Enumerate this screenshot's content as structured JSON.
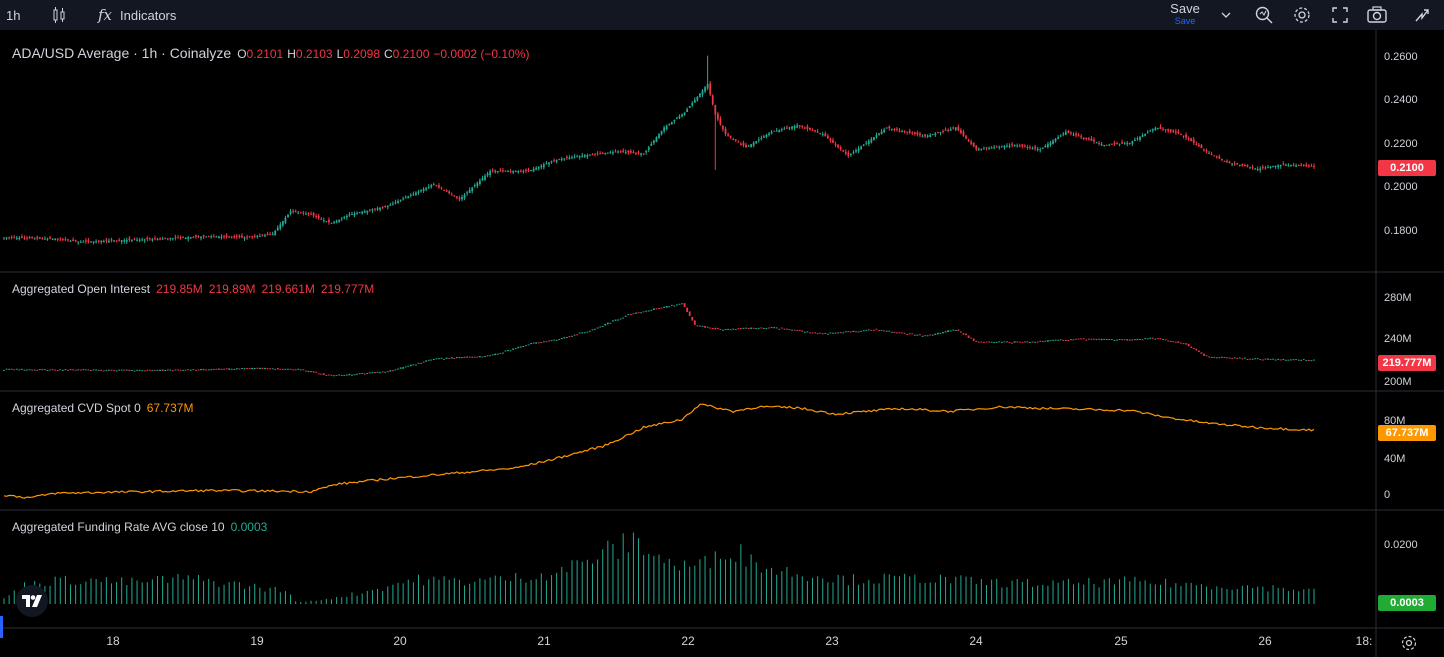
{
  "toolbar": {
    "interval": "1h",
    "indicators_label": "Indicators",
    "save_label": "Save",
    "save_sub": "Save",
    "fx": "fx"
  },
  "colors": {
    "up": "#22ab94",
    "down": "#f23645",
    "cvd": "#ff9800",
    "bg": "#000000",
    "grid": "#2a2e39"
  },
  "pane_price": {
    "symbol": "ADA/USD Average · 1h · Coinalyze",
    "o_label": "O",
    "o": "0.2101",
    "h_label": "H",
    "h": "0.2103",
    "l_label": "L",
    "l": "0.2098",
    "c_label": "C",
    "c": "0.2100",
    "change": "−0.0002 (−0.10%)",
    "axis": [
      "0.2600",
      "0.2400",
      "0.2200",
      "0.2000",
      "0.1800"
    ],
    "last": "0.2100"
  },
  "pane_oi": {
    "title": "Aggregated Open Interest",
    "values": [
      "219.85M",
      "219.89M",
      "219.661M",
      "219.777M"
    ],
    "axis": [
      "280M",
      "240M",
      "200M"
    ],
    "last": "219.777M"
  },
  "pane_cvd": {
    "title": "Aggregated CVD Spot 0",
    "value": "67.737M",
    "axis": [
      "80M",
      "40M",
      "0"
    ],
    "last": "67.737M"
  },
  "pane_funding": {
    "title": "Aggregated Funding Rate AVG close 10",
    "value": "0.0003",
    "axis": [
      "0.0200"
    ],
    "last": "0.0003"
  },
  "time_axis": {
    "dates": [
      "18",
      "19",
      "20",
      "21",
      "22",
      "23",
      "24",
      "25",
      "26",
      "18:"
    ]
  },
  "chart_data": {
    "type": "candlestick",
    "x_labels": [
      "18",
      "19",
      "20",
      "21",
      "22",
      "23",
      "24",
      "25",
      "26"
    ],
    "price_waypoints": [
      [
        0,
        0.1775
      ],
      [
        20,
        0.1768
      ],
      [
        30,
        0.1755
      ],
      [
        60,
        0.1768
      ],
      [
        80,
        0.178
      ],
      [
        95,
        0.1775
      ],
      [
        105,
        0.179
      ],
      [
        112,
        0.1895
      ],
      [
        120,
        0.188
      ],
      [
        128,
        0.184
      ],
      [
        135,
        0.188
      ],
      [
        150,
        0.192
      ],
      [
        168,
        0.202
      ],
      [
        178,
        0.195
      ],
      [
        190,
        0.208
      ],
      [
        205,
        0.208
      ],
      [
        215,
        0.213
      ],
      [
        225,
        0.215
      ],
      [
        240,
        0.217
      ],
      [
        250,
        0.216
      ],
      [
        258,
        0.228
      ],
      [
        266,
        0.235
      ],
      [
        275,
        0.248
      ],
      [
        278,
        0.234
      ],
      [
        282,
        0.225
      ],
      [
        290,
        0.219
      ],
      [
        300,
        0.226
      ],
      [
        310,
        0.229
      ],
      [
        320,
        0.225
      ],
      [
        330,
        0.215
      ],
      [
        345,
        0.228
      ],
      [
        360,
        0.224
      ],
      [
        372,
        0.228
      ],
      [
        380,
        0.218
      ],
      [
        395,
        0.22
      ],
      [
        405,
        0.218
      ],
      [
        415,
        0.226
      ],
      [
        430,
        0.22
      ],
      [
        440,
        0.221
      ],
      [
        450,
        0.228
      ],
      [
        460,
        0.225
      ],
      [
        470,
        0.217
      ],
      [
        478,
        0.212
      ],
      [
        490,
        0.209
      ],
      [
        500,
        0.211
      ],
      [
        512,
        0.21
      ]
    ],
    "oi_waypoints": [
      [
        0,
        212
      ],
      [
        60,
        211
      ],
      [
        100,
        213
      ],
      [
        115,
        212
      ],
      [
        128,
        206
      ],
      [
        150,
        210
      ],
      [
        168,
        222
      ],
      [
        190,
        225
      ],
      [
        205,
        236
      ],
      [
        215,
        240
      ],
      [
        230,
        250
      ],
      [
        245,
        265
      ],
      [
        265,
        275
      ],
      [
        270,
        254
      ],
      [
        280,
        250
      ],
      [
        300,
        252
      ],
      [
        320,
        246
      ],
      [
        340,
        250
      ],
      [
        360,
        244
      ],
      [
        372,
        250
      ],
      [
        380,
        238
      ],
      [
        400,
        238
      ],
      [
        420,
        241
      ],
      [
        440,
        240
      ],
      [
        450,
        242
      ],
      [
        462,
        236
      ],
      [
        470,
        224
      ],
      [
        490,
        222
      ],
      [
        512,
        221
      ]
    ],
    "cvd_waypoints": [
      [
        0,
        0
      ],
      [
        10,
        -3
      ],
      [
        20,
        2
      ],
      [
        60,
        4
      ],
      [
        80,
        5
      ],
      [
        120,
        4
      ],
      [
        130,
        12
      ],
      [
        150,
        18
      ],
      [
        175,
        24
      ],
      [
        200,
        30
      ],
      [
        215,
        40
      ],
      [
        235,
        55
      ],
      [
        250,
        75
      ],
      [
        265,
        84
      ],
      [
        272,
        101
      ],
      [
        285,
        93
      ],
      [
        295,
        98
      ],
      [
        310,
        97
      ],
      [
        325,
        90
      ],
      [
        350,
        96
      ],
      [
        370,
        93
      ],
      [
        390,
        98
      ],
      [
        410,
        96
      ],
      [
        440,
        94
      ],
      [
        455,
        86
      ],
      [
        470,
        80
      ],
      [
        490,
        75
      ],
      [
        512,
        72
      ]
    ],
    "funding_waypoints": [
      [
        0,
        0.002
      ],
      [
        10,
        0.0075
      ],
      [
        30,
        0.0085
      ],
      [
        50,
        0.0075
      ],
      [
        70,
        0.009
      ],
      [
        90,
        0.007
      ],
      [
        110,
        0.0045
      ],
      [
        115,
        0.0005
      ],
      [
        120,
        0.001
      ],
      [
        128,
        0.002
      ],
      [
        140,
        0.004
      ],
      [
        160,
        0.0085
      ],
      [
        180,
        0.008
      ],
      [
        200,
        0.009
      ],
      [
        215,
        0.011
      ],
      [
        225,
        0.014
      ],
      [
        235,
        0.018
      ],
      [
        248,
        0.022
      ],
      [
        258,
        0.015
      ],
      [
        265,
        0.013
      ],
      [
        275,
        0.014
      ],
      [
        282,
        0.02
      ],
      [
        300,
        0.012
      ],
      [
        330,
        0.0085
      ],
      [
        360,
        0.009
      ],
      [
        385,
        0.0075
      ],
      [
        410,
        0.007
      ],
      [
        440,
        0.0078
      ],
      [
        470,
        0.0065
      ],
      [
        500,
        0.0055
      ],
      [
        512,
        0.0045
      ]
    ]
  }
}
